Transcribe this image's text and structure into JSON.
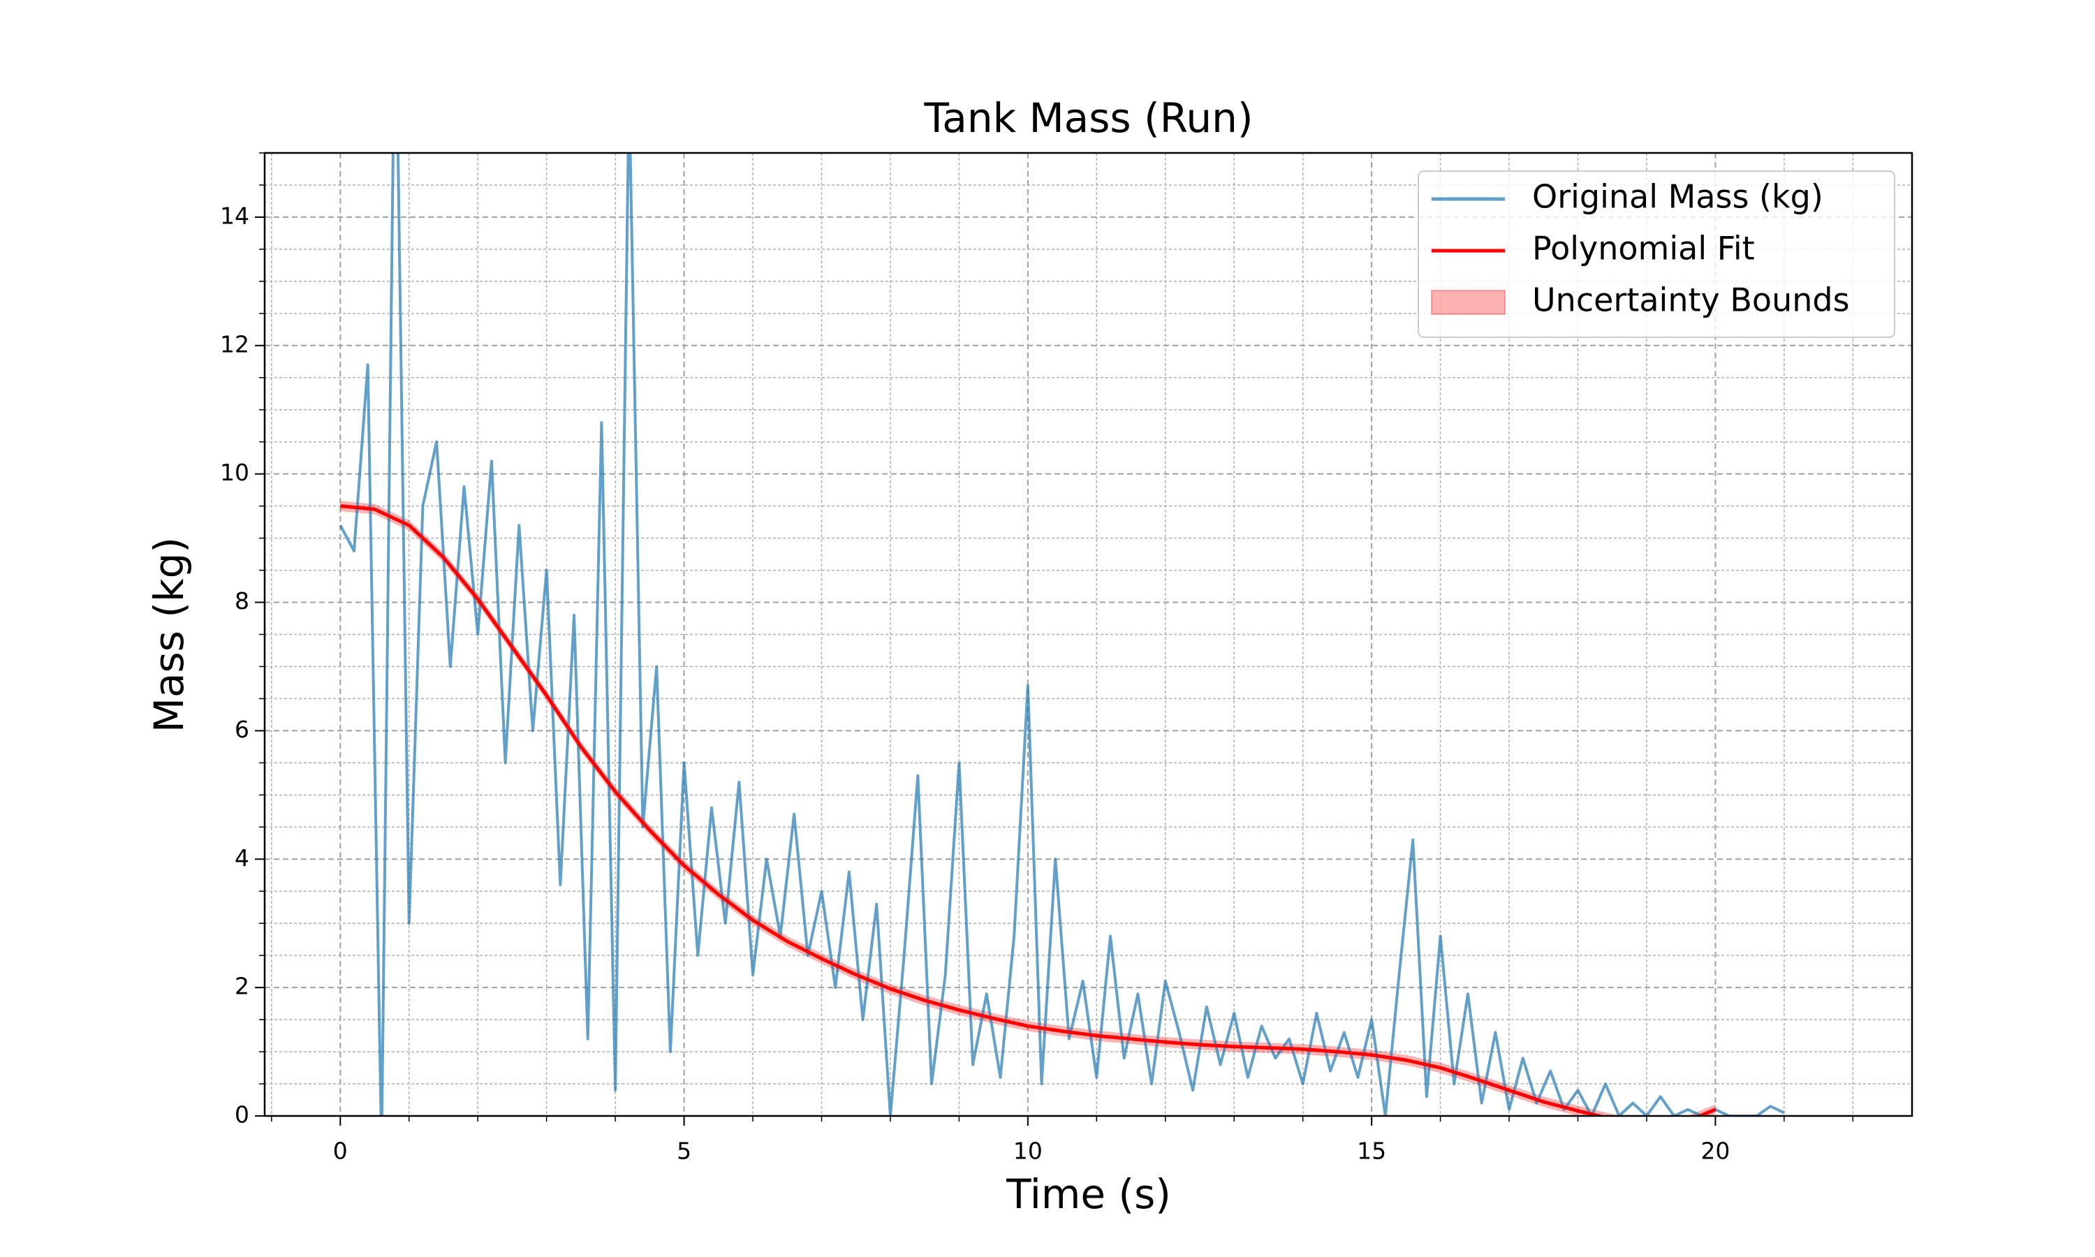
{
  "chart_data": {
    "type": "line",
    "title": "Tank Mass (Run)",
    "xlabel": "Time (s)",
    "ylabel": "Mass (kg)",
    "xlim": [
      -1.1,
      22.86
    ],
    "ylim": [
      0,
      15
    ],
    "xticks": [
      0,
      5,
      10,
      15,
      20
    ],
    "yticks": [
      0,
      2,
      4,
      6,
      8,
      10,
      12,
      14
    ],
    "grid": true,
    "minor_grid": {
      "x": 1,
      "y": 0.5
    },
    "legend": "upper right",
    "series": [
      {
        "name": "Original Mass (kg)",
        "color": "#1f77b4",
        "alpha": 0.7,
        "x": [
          0,
          0.2,
          0.4,
          0.6,
          0.8,
          1,
          1.2,
          1.4,
          1.6,
          1.8,
          2,
          2.2,
          2.4,
          2.6,
          2.8,
          3,
          3.2,
          3.4,
          3.6,
          3.8,
          4,
          4.2,
          4.4,
          4.6,
          4.8,
          5,
          5.2,
          5.4,
          5.6,
          5.8,
          6,
          6.2,
          6.4,
          6.6,
          6.8,
          7,
          7.2,
          7.4,
          7.6,
          7.8,
          8,
          8.2,
          8.4,
          8.6,
          8.8,
          9,
          9.2,
          9.4,
          9.6,
          9.8,
          10,
          10.2,
          10.4,
          10.6,
          10.8,
          11,
          11.2,
          11.4,
          11.6,
          11.8,
          12,
          12.2,
          12.4,
          12.6,
          12.8,
          13,
          13.2,
          13.4,
          13.6,
          13.8,
          14,
          14.2,
          14.4,
          14.6,
          14.8,
          15,
          15.2,
          15.4,
          15.6,
          15.8,
          16,
          16.2,
          16.4,
          16.6,
          16.8,
          17,
          17.2,
          17.4,
          17.6,
          17.8,
          18,
          18.2,
          18.4,
          18.6,
          18.8,
          19,
          19.2,
          19.4,
          19.6,
          19.8,
          20,
          20.2,
          20.4,
          20.6,
          20.8,
          21
        ],
        "values": [
          9.2,
          8.8,
          11.7,
          -0.5,
          18,
          3,
          9.5,
          10.5,
          7,
          9.8,
          7.5,
          10.2,
          5.5,
          9.2,
          6,
          8.5,
          3.6,
          7.8,
          1.2,
          10.8,
          0.4,
          16,
          4.5,
          7,
          1.0,
          5.5,
          2.5,
          4.8,
          3.0,
          5.2,
          2.2,
          4.0,
          2.8,
          4.7,
          2.5,
          3.5,
          2.0,
          3.8,
          1.5,
          3.3,
          0,
          2.5,
          5.3,
          0.5,
          2.2,
          5.5,
          0.8,
          1.9,
          0.6,
          2.8,
          6.7,
          0.5,
          4.0,
          1.2,
          2.1,
          0.6,
          2.8,
          0.9,
          1.9,
          0.5,
          2.1,
          1.3,
          0.4,
          1.7,
          0.8,
          1.6,
          0.6,
          1.4,
          0.9,
          1.2,
          0.5,
          1.6,
          0.7,
          1.3,
          0.6,
          1.5,
          0,
          2.2,
          4.3,
          0.3,
          2.8,
          0.5,
          1.9,
          0.2,
          1.3,
          0.1,
          0.9,
          0.2,
          0.7,
          0.1,
          0.4,
          0,
          0.5,
          0,
          0.2,
          0,
          0.3,
          0,
          0.1,
          0,
          0.1,
          0,
          0,
          0,
          0.15,
          0.05
        ]
      },
      {
        "name": "Polynomial Fit",
        "color": "#ff0000",
        "alpha": 1,
        "x": [
          0,
          0.5,
          1,
          1.5,
          2,
          2.5,
          3,
          3.5,
          4,
          4.5,
          5,
          5.5,
          6,
          6.5,
          7,
          7.5,
          8,
          8.5,
          9,
          9.5,
          10,
          10.5,
          11,
          11.5,
          12,
          12.5,
          13,
          13.5,
          14,
          14.5,
          15,
          15.5,
          16,
          16.5,
          17,
          17.5,
          18,
          18.5,
          19,
          19.5,
          20
        ],
        "values": [
          9.5,
          9.45,
          9.2,
          8.7,
          8.05,
          7.3,
          6.55,
          5.75,
          5.05,
          4.45,
          3.9,
          3.45,
          3.05,
          2.72,
          2.45,
          2.2,
          1.98,
          1.8,
          1.65,
          1.52,
          1.4,
          1.32,
          1.25,
          1.2,
          1.15,
          1.11,
          1.08,
          1.06,
          1.04,
          1.0,
          0.95,
          0.87,
          0.75,
          0.58,
          0.4,
          0.22,
          0.08,
          -0.05,
          -0.15,
          -0.12,
          0.1
        ]
      }
    ],
    "bands": [
      {
        "name": "Uncertainty Bounds",
        "color": "#ff0000",
        "alpha": 0.3,
        "x": [
          0,
          0.5,
          1,
          1.5,
          2,
          2.5,
          3,
          3.5,
          4,
          4.5,
          5,
          5.5,
          6,
          6.5,
          7,
          7.5,
          8,
          8.5,
          9,
          9.5,
          10,
          10.5,
          11,
          11.5,
          12,
          12.5,
          13,
          13.5,
          14,
          14.5,
          15,
          15.5,
          16,
          16.5,
          17,
          17.5,
          18,
          18.5,
          19,
          19.5,
          20
        ],
        "lower": [
          9.42,
          9.37,
          9.12,
          8.62,
          7.97,
          7.22,
          6.47,
          5.67,
          4.97,
          4.37,
          3.82,
          3.37,
          2.97,
          2.64,
          2.37,
          2.12,
          1.9,
          1.72,
          1.57,
          1.44,
          1.32,
          1.24,
          1.17,
          1.12,
          1.07,
          1.03,
          1.0,
          0.98,
          0.96,
          0.92,
          0.87,
          0.79,
          0.67,
          0.5,
          0.32,
          0.14,
          0,
          -0.13,
          -0.23,
          -0.2,
          0.02
        ],
        "upper": [
          9.58,
          9.53,
          9.28,
          8.78,
          8.13,
          7.38,
          6.63,
          5.83,
          5.13,
          4.53,
          3.98,
          3.53,
          3.13,
          2.8,
          2.53,
          2.28,
          2.06,
          1.88,
          1.73,
          1.6,
          1.48,
          1.4,
          1.33,
          1.28,
          1.23,
          1.19,
          1.16,
          1.14,
          1.12,
          1.08,
          1.03,
          0.95,
          0.83,
          0.66,
          0.48,
          0.3,
          0.16,
          0.03,
          -0.07,
          -0.04,
          0.18
        ]
      }
    ]
  }
}
